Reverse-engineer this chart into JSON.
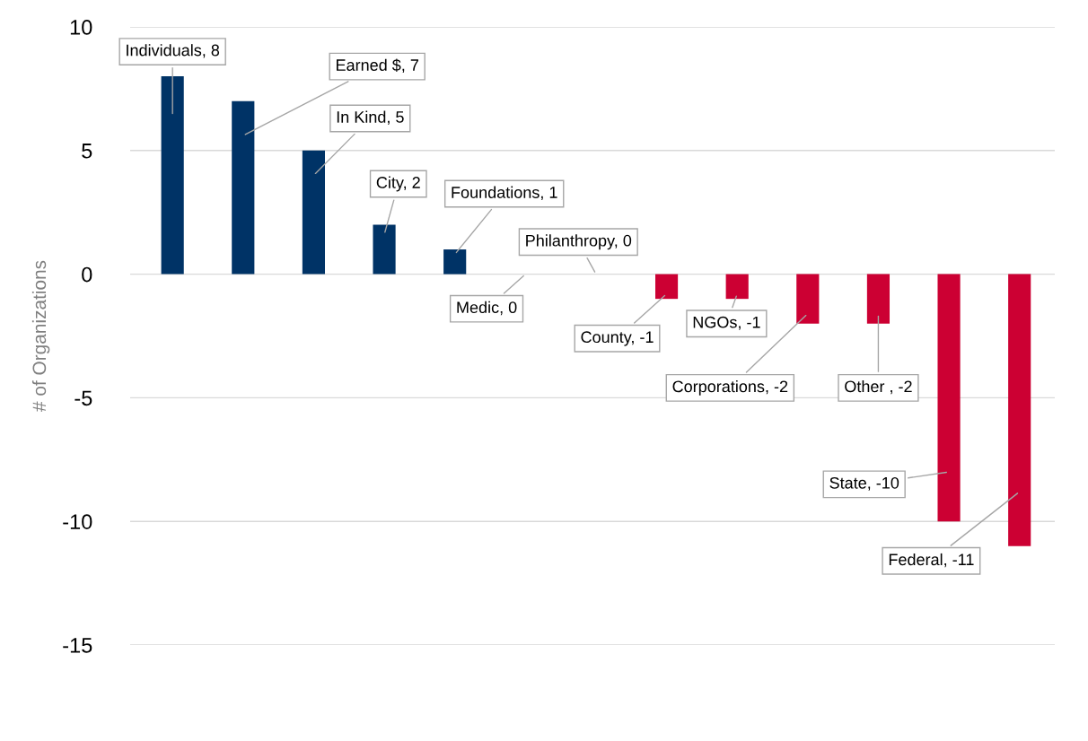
{
  "chart_data": {
    "type": "bar",
    "ylabel": "# of Organizations",
    "categories": [
      null,
      null,
      null,
      null,
      null,
      null,
      null,
      null,
      null,
      null,
      null,
      null,
      null
    ],
    "values": [
      8,
      7,
      5,
      2,
      1,
      0,
      0,
      -1,
      -1,
      -2,
      -2,
      -10,
      -11
    ],
    "colors": [
      "#003366",
      "#003366",
      "#003366",
      "#003366",
      "#003366",
      "#003366",
      "#003366",
      "#cc0033",
      "#cc0033",
      "#cc0033",
      "#cc0033",
      "#cc0033",
      "#cc0033"
    ],
    "value_labels": [
      "Individuals, 8",
      "Earned $, 7",
      "In Kind, 5",
      "City, 2",
      "Foundations, 1",
      "Medic, 0",
      "Philanthropy, 0",
      "County, -1",
      "NGOs, -1",
      "Corporations, -2",
      "Other , -2",
      "State, -10",
      "Federal, -11"
    ],
    "ylim": [
      -15,
      10
    ],
    "yticks": [
      -15,
      -10,
      -5,
      0,
      5,
      10
    ],
    "grid": "y",
    "legend": false
  }
}
